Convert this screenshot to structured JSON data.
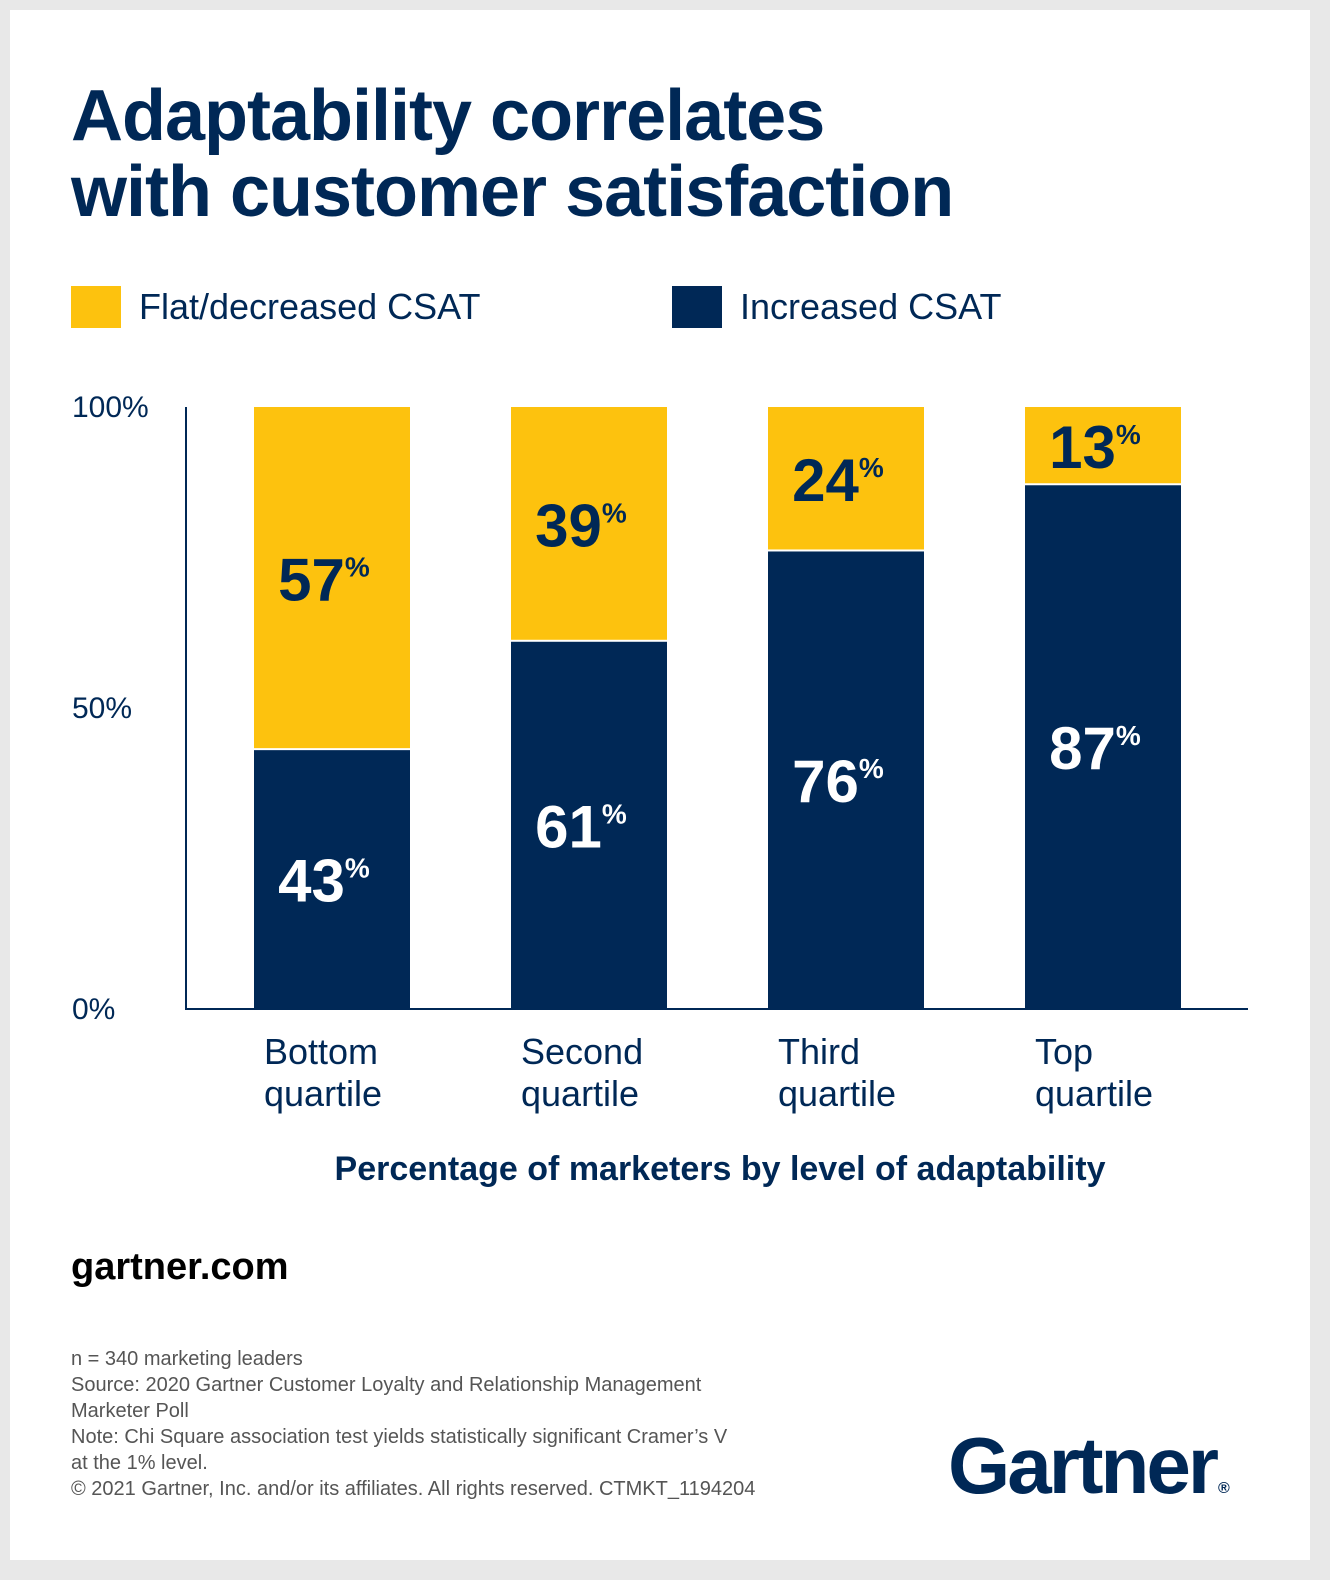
{
  "title": "Adaptability correlates\nwith customer satisfaction",
  "legend": [
    {
      "label": "Flat/decreased CSAT",
      "color": "#FDC20E"
    },
    {
      "label": "Increased CSAT",
      "color": "#002856"
    }
  ],
  "chart_data": {
    "type": "bar",
    "stacked": true,
    "categories": [
      "Bottom\nquartile",
      "Second\nquartile",
      "Third\nquartile",
      "Top\nquartile"
    ],
    "series": [
      {
        "name": "Increased CSAT",
        "values": [
          43,
          61,
          76,
          87
        ],
        "color": "#002856",
        "label_color": "#ffffff"
      },
      {
        "name": "Flat/decreased CSAT",
        "values": [
          57,
          39,
          24,
          13
        ],
        "color": "#FDC20E",
        "label_color": "#002856"
      }
    ],
    "value_suffix": "%",
    "yticks": [
      "0%",
      "50%",
      "100%"
    ],
    "ylim": [
      0,
      100
    ],
    "xlabel": "Percentage of marketers by level of adaptability",
    "ylabel": "",
    "grid": false
  },
  "site": "gartner.com",
  "footnotes": [
    "n = 340 marketing leaders",
    "Source: 2020 Gartner Customer Loyalty and Relationship Management\nMarketer Poll",
    "Note: Chi Square association test yields statistically significant Cramer’s V\nat the 1% level.",
    "© 2021 Gartner, Inc. and/or its affiliates. All rights reserved. CTMKT_1194204"
  ],
  "logo": {
    "text": "Gartner",
    "mark": "®"
  }
}
